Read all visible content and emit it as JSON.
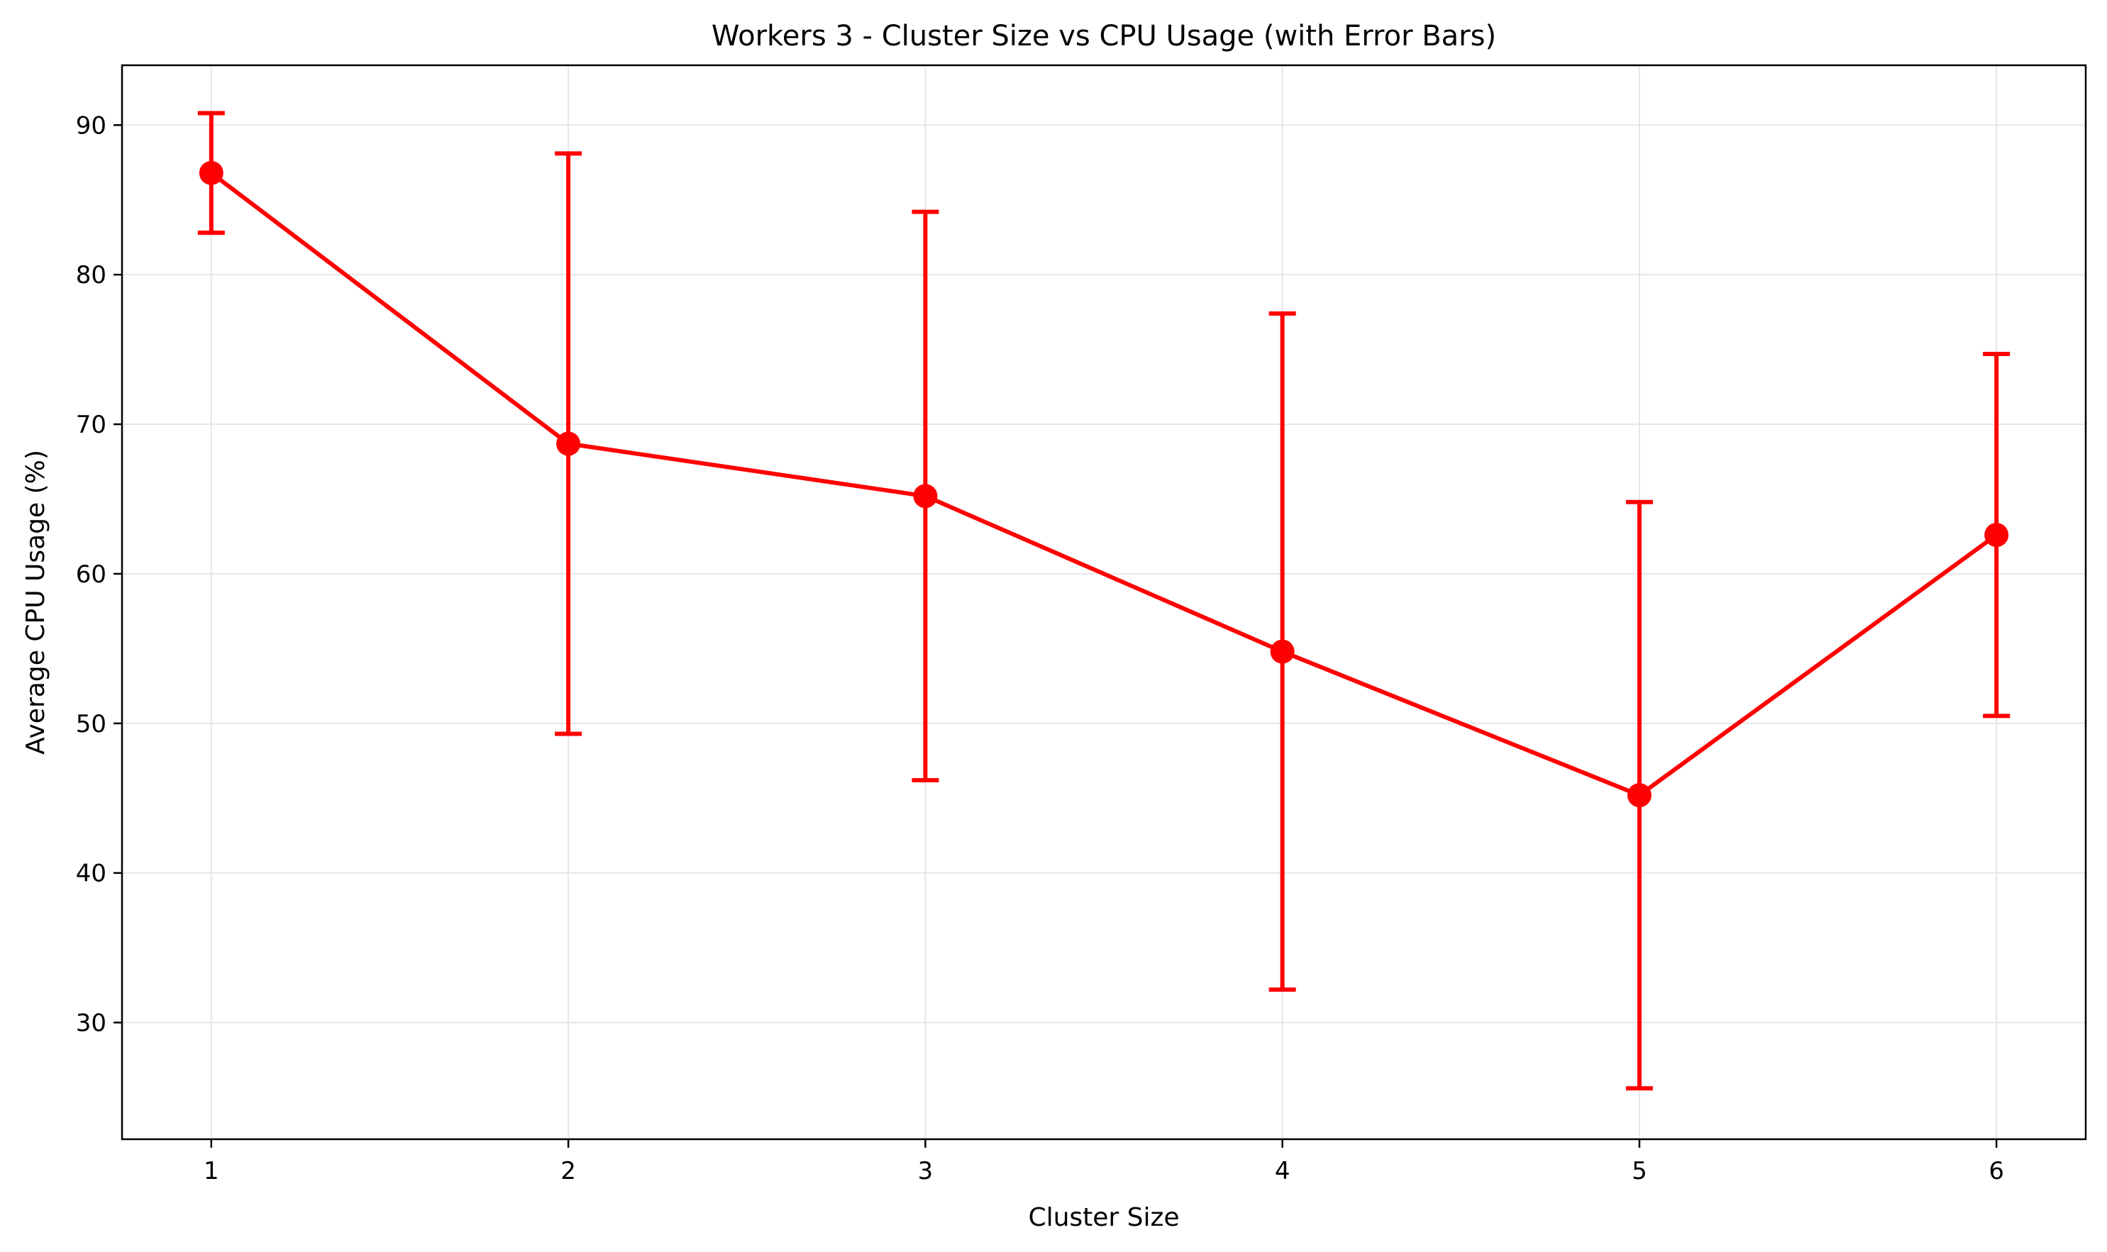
{
  "chart_data": {
    "type": "line",
    "title": "Workers 3 - Cluster Size vs CPU Usage (with Error Bars)",
    "xlabel": "Cluster Size",
    "ylabel": "Average CPU Usage (%)",
    "x": [
      1,
      2,
      3,
      4,
      5,
      6
    ],
    "y": [
      86.8,
      68.7,
      65.2,
      54.8,
      45.2,
      62.6
    ],
    "error_low": [
      82.8,
      49.3,
      46.2,
      32.2,
      25.6,
      50.5
    ],
    "error_high": [
      90.8,
      88.1,
      84.2,
      77.4,
      64.8,
      74.7
    ],
    "xlim": [
      0.75,
      6.25
    ],
    "ylim": [
      22.2,
      94.0
    ],
    "xticks": [
      1,
      2,
      3,
      4,
      5,
      6
    ],
    "yticks": [
      30,
      40,
      50,
      60,
      70,
      80,
      90
    ],
    "grid": true,
    "legend": "none",
    "series_color": "#ff0000",
    "grid_color": "#e6e6e6",
    "axis_color": "#000000"
  }
}
